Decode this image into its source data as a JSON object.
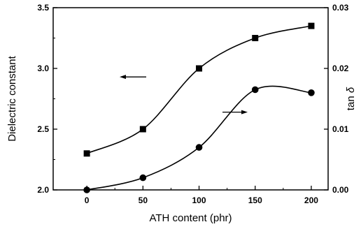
{
  "chart_data": {
    "type": "line",
    "title": "",
    "xlabel": "ATH content (phr)",
    "ylabel_left": "Dielectric constant",
    "ylabel_right_prefix": "tan ",
    "ylabel_right_symbol": "δ",
    "xlim": [
      -30,
      215
    ],
    "ylim_left": [
      2.0,
      3.5
    ],
    "ylim_right": [
      0.0,
      0.03
    ],
    "x_ticks": [
      "0",
      "50",
      "100",
      "150",
      "200"
    ],
    "y_left_ticks": [
      "2.0",
      "2.5",
      "3.0",
      "3.5"
    ],
    "y_right_ticks": [
      "0.00",
      "0.01",
      "0.02",
      "0.03"
    ],
    "grid": false,
    "series": [
      {
        "axis": "left",
        "marker": "square",
        "x": [
          0,
          50,
          100,
          150,
          200
        ],
        "values": [
          2.3,
          2.5,
          3.0,
          3.25,
          3.35
        ]
      },
      {
        "axis": "right",
        "marker": "circle",
        "x": [
          0,
          50,
          100,
          150,
          200
        ],
        "values": [
          0.0,
          0.002,
          0.007,
          0.0165,
          0.016
        ]
      }
    ],
    "annotations": [
      {
        "type": "arrow",
        "direction": "left",
        "points_to": "left-axis series"
      },
      {
        "type": "arrow",
        "direction": "right",
        "points_to": "right-axis series"
      }
    ]
  }
}
